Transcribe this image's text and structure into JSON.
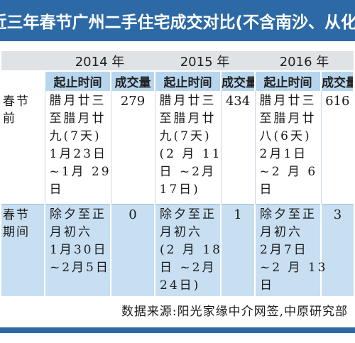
{
  "title": "近三年春节广州二手住宅成交对比(不含南沙、从化)",
  "years": [
    "2014 年",
    "2015 年",
    "2016 年"
  ],
  "subheaders": {
    "period": "起止时间",
    "volume": "成交量"
  },
  "rows": [
    {
      "label": "春节前",
      "cells": [
        {
          "lines": [
            "腊月廿三",
            "至腊月廿",
            "九(7天)",
            "1月23日",
            "~1月 29",
            "日"
          ],
          "volume": "279"
        },
        {
          "lines": [
            "腊月廿三",
            "至腊月廿",
            "九(7天)",
            "(2 月 11",
            "日 ~2月",
            "17日)"
          ],
          "volume": "434"
        },
        {
          "lines": [
            "腊月廿三",
            "至腊月廿",
            "八(6天)",
            "2月1日",
            "~2 月 6",
            "日"
          ],
          "volume": "616"
        }
      ]
    },
    {
      "label": "春节期间",
      "cells": [
        {
          "lines": [
            "除夕至正",
            "月初六",
            "1月30日",
            "~2月5日"
          ],
          "volume": "0"
        },
        {
          "lines": [
            "除夕至正",
            "月初六",
            "(2 月 18",
            "日 ~2月",
            "24日)"
          ],
          "volume": "1"
        },
        {
          "lines": [
            "除夕至正",
            "月初六",
            "2月7日",
            "~2 月 13",
            "日"
          ],
          "volume": "3"
        }
      ]
    }
  ],
  "source": "数据来源:阳光家缘中介网签,中原研究部",
  "colors": {
    "accent": "#2d6aa5",
    "header_gray": "#dfe3e6",
    "header_blue": "#b7d6ee",
    "row_blue": "#c8dff2"
  }
}
